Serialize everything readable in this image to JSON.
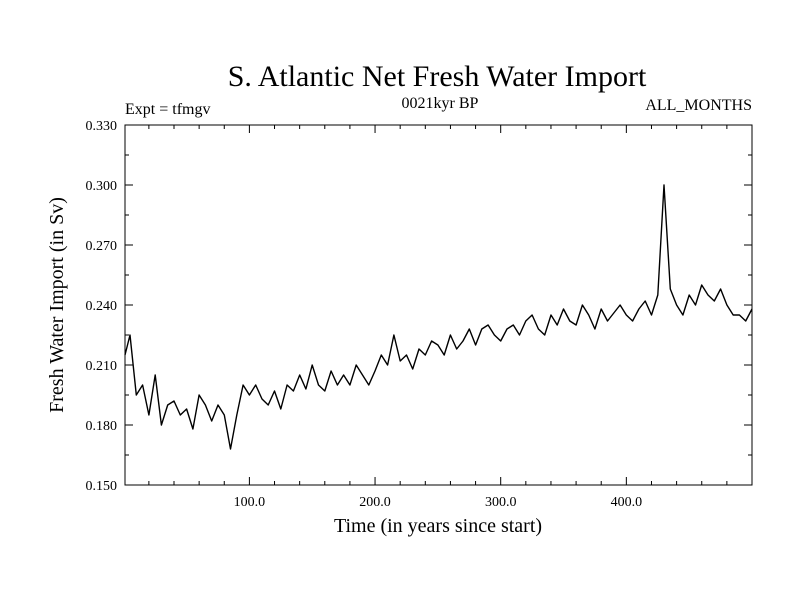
{
  "chart_data": {
    "type": "line",
    "title": "S. Atlantic Net Fresh Water Import",
    "left_note": "Expt = tfmgv",
    "center_note": "0021kyr BP",
    "right_note": "ALL_MONTHS",
    "xlabel": "Time (in years since start)",
    "ylabel": "Fresh Water Import (in Sv)",
    "xlim": [
      1,
      500
    ],
    "ylim": [
      0.15,
      0.33
    ],
    "xticks": [
      {
        "value": 100,
        "label": "100.0"
      },
      {
        "value": 200,
        "label": "200.0"
      },
      {
        "value": 300,
        "label": "300.0"
      },
      {
        "value": 400,
        "label": "400.0"
      }
    ],
    "yticks": [
      {
        "value": 0.15,
        "label": "0.150"
      },
      {
        "value": 0.18,
        "label": "0.180"
      },
      {
        "value": 0.21,
        "label": "0.210"
      },
      {
        "value": 0.24,
        "label": "0.240"
      },
      {
        "value": 0.27,
        "label": "0.270"
      },
      {
        "value": 0.3,
        "label": "0.300"
      },
      {
        "value": 0.33,
        "label": "0.330"
      }
    ],
    "grid": false,
    "series": [
      {
        "line_color": "#000000",
        "x": [
          1,
          5,
          10,
          15,
          20,
          25,
          30,
          35,
          40,
          45,
          50,
          55,
          60,
          65,
          70,
          75,
          80,
          85,
          90,
          95,
          100,
          105,
          110,
          115,
          120,
          125,
          130,
          135,
          140,
          145,
          150,
          155,
          160,
          165,
          170,
          175,
          180,
          185,
          190,
          195,
          200,
          205,
          210,
          215,
          220,
          225,
          230,
          235,
          240,
          245,
          250,
          255,
          260,
          265,
          270,
          275,
          280,
          285,
          290,
          295,
          300,
          305,
          310,
          315,
          320,
          325,
          330,
          335,
          340,
          345,
          350,
          355,
          360,
          365,
          370,
          375,
          380,
          385,
          390,
          395,
          400,
          405,
          410,
          415,
          420,
          425,
          430,
          435,
          440,
          445,
          450,
          455,
          460,
          465,
          470,
          475,
          480,
          485,
          490,
          495,
          500
        ],
        "y": [
          0.215,
          0.225,
          0.195,
          0.2,
          0.185,
          0.205,
          0.18,
          0.19,
          0.192,
          0.185,
          0.188,
          0.178,
          0.195,
          0.19,
          0.182,
          0.19,
          0.185,
          0.168,
          0.185,
          0.2,
          0.195,
          0.2,
          0.193,
          0.19,
          0.197,
          0.188,
          0.2,
          0.197,
          0.205,
          0.198,
          0.21,
          0.2,
          0.197,
          0.207,
          0.2,
          0.205,
          0.2,
          0.21,
          0.205,
          0.2,
          0.207,
          0.215,
          0.21,
          0.225,
          0.212,
          0.215,
          0.208,
          0.218,
          0.215,
          0.222,
          0.22,
          0.215,
          0.225,
          0.218,
          0.222,
          0.228,
          0.22,
          0.228,
          0.23,
          0.225,
          0.222,
          0.228,
          0.23,
          0.225,
          0.232,
          0.235,
          0.228,
          0.225,
          0.235,
          0.23,
          0.238,
          0.232,
          0.23,
          0.24,
          0.235,
          0.228,
          0.238,
          0.232,
          0.236,
          0.24,
          0.235,
          0.232,
          0.238,
          0.242,
          0.235,
          0.245,
          0.3,
          0.248,
          0.24,
          0.235,
          0.245,
          0.24,
          0.25,
          0.245,
          0.242,
          0.248,
          0.24,
          0.235,
          0.235,
          0.232,
          0.238
        ]
      }
    ]
  }
}
